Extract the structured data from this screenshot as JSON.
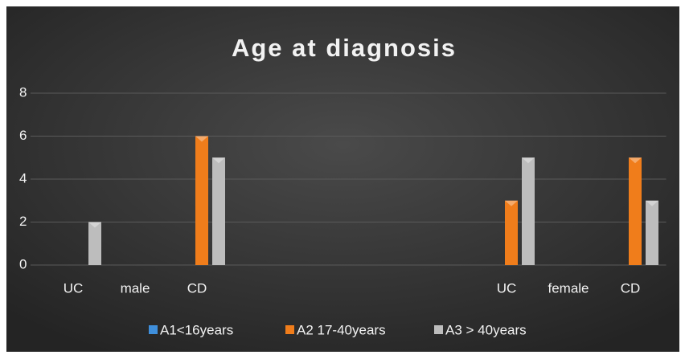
{
  "chart_data": {
    "type": "bar",
    "title": "Age at diagnosis",
    "categories": [
      "UC",
      "male",
      "CD",
      null,
      null,
      null,
      null,
      "UC",
      "female",
      "CD"
    ],
    "series": [
      {
        "name": "A1<16years",
        "color": "#3f8fdc",
        "values": [
          null,
          null,
          null,
          null,
          null,
          null,
          null,
          null,
          null,
          null
        ]
      },
      {
        "name": "A2 17-40years",
        "color": "#f07d1b",
        "values": [
          null,
          null,
          6,
          null,
          null,
          null,
          null,
          3,
          null,
          5
        ]
      },
      {
        "name": "A3 > 40years",
        "color": "#bdbdbd",
        "values": [
          2,
          null,
          5,
          null,
          null,
          null,
          null,
          5,
          null,
          3
        ]
      }
    ],
    "ylim": [
      0,
      8
    ],
    "yticks": [
      0,
      2,
      4,
      6,
      8
    ],
    "grid": true,
    "legend": "bottom"
  }
}
